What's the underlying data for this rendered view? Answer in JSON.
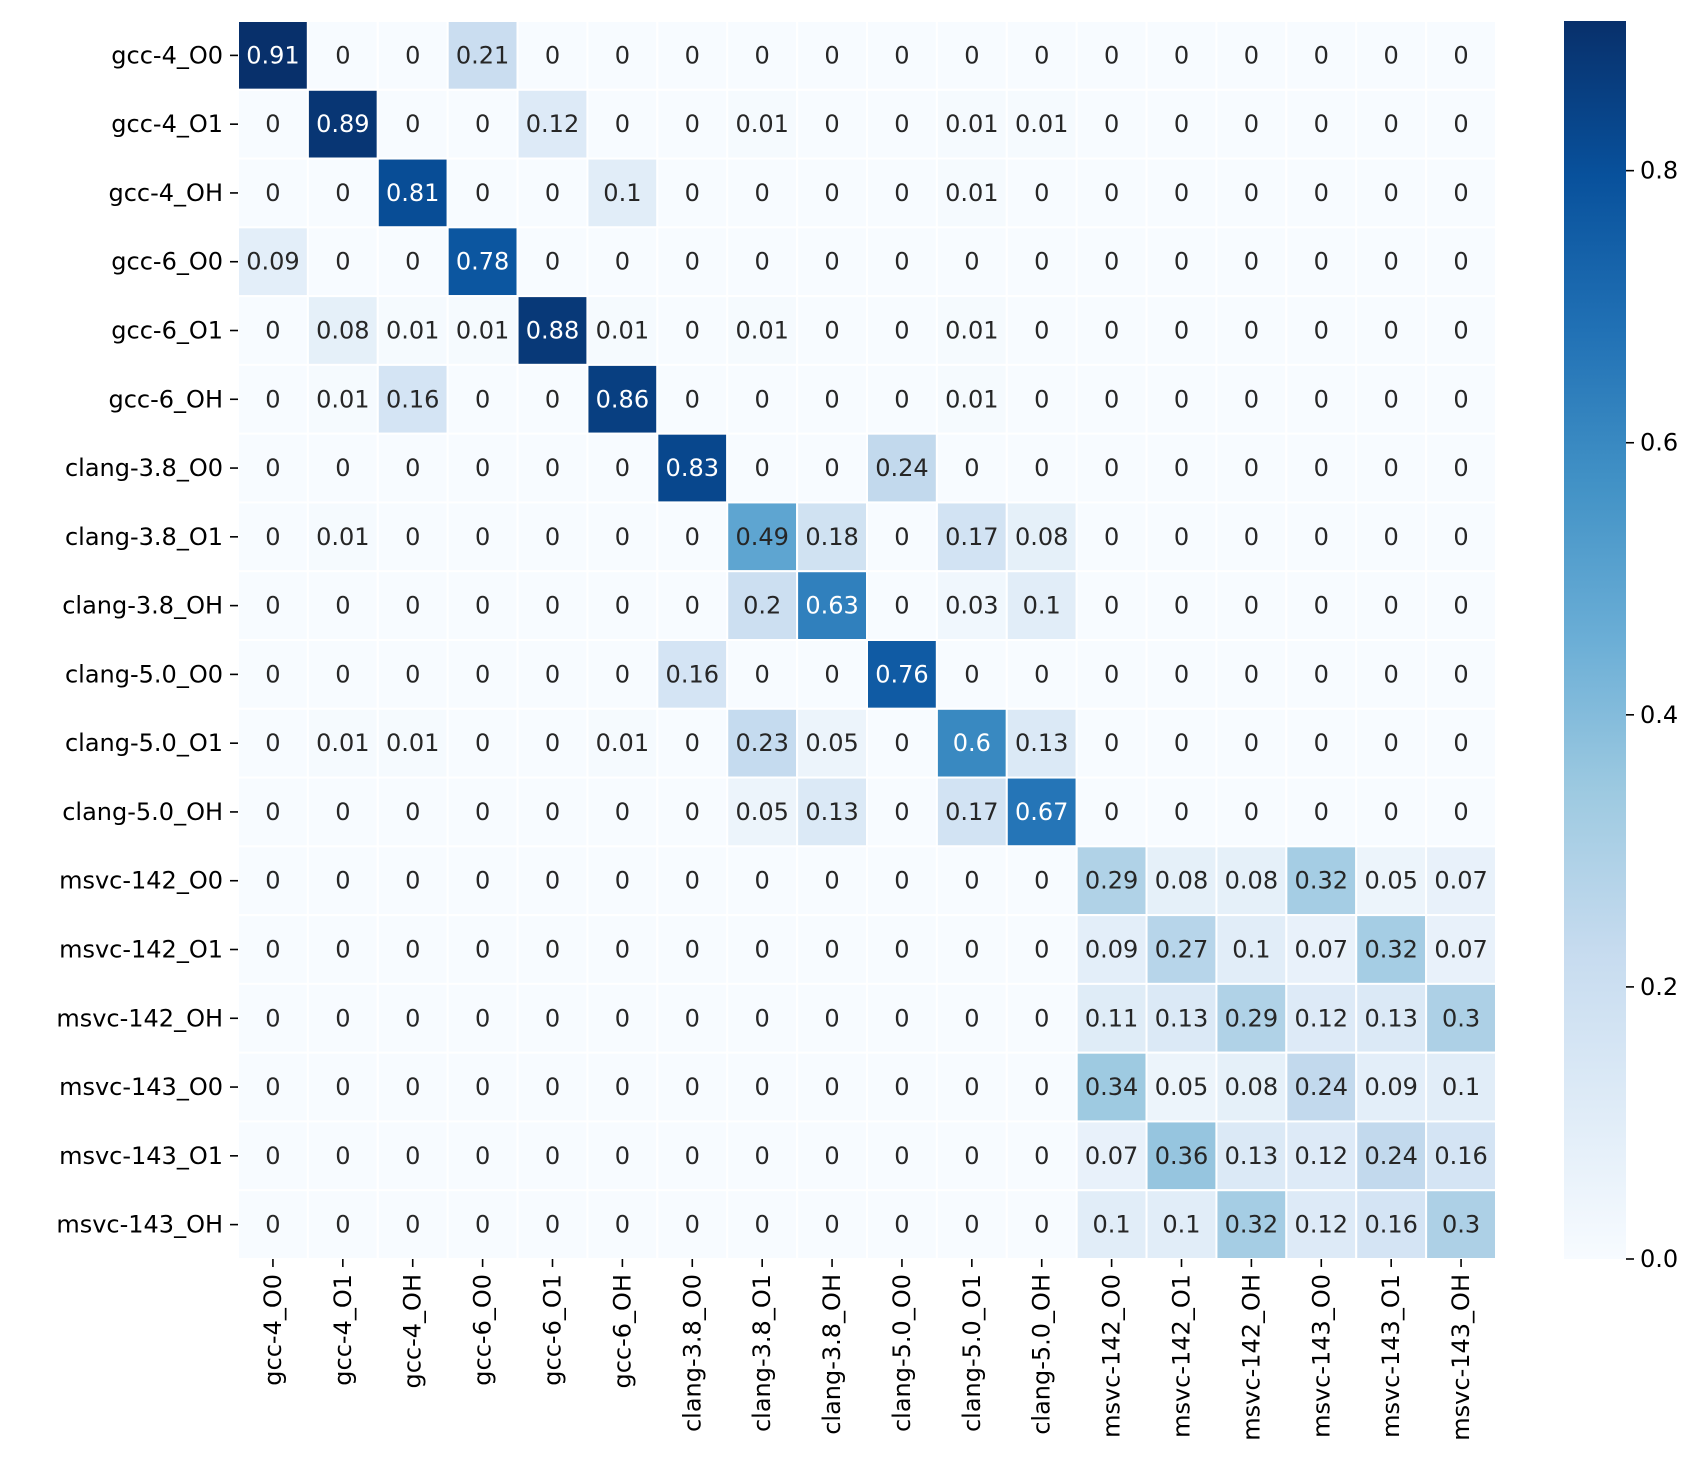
{
  "chart_data": {
    "type": "heatmap",
    "title": "",
    "xlabel": "",
    "ylabel": "",
    "rows": [
      "gcc-4_O0",
      "gcc-4_O1",
      "gcc-4_OH",
      "gcc-6_O0",
      "gcc-6_O1",
      "gcc-6_OH",
      "clang-3.8_O0",
      "clang-3.8_O1",
      "clang-3.8_OH",
      "clang-5.0_O0",
      "clang-5.0_O1",
      "clang-5.0_OH",
      "msvc-142_O0",
      "msvc-142_O1",
      "msvc-142_OH",
      "msvc-143_O0",
      "msvc-143_O1",
      "msvc-143_OH"
    ],
    "columns": [
      "gcc-4_O0",
      "gcc-4_O1",
      "gcc-4_OH",
      "gcc-6_O0",
      "gcc-6_O1",
      "gcc-6_OH",
      "clang-3.8_O0",
      "clang-3.8_O1",
      "clang-3.8_OH",
      "clang-5.0_O0",
      "clang-5.0_O1",
      "clang-5.0_OH",
      "msvc-142_O0",
      "msvc-142_O1",
      "msvc-142_OH",
      "msvc-143_O0",
      "msvc-143_O1",
      "msvc-143_OH"
    ],
    "values": [
      [
        0.91,
        0,
        0,
        0.21,
        0,
        0,
        0,
        0,
        0,
        0,
        0,
        0,
        0,
        0,
        0,
        0,
        0,
        0
      ],
      [
        0,
        0.89,
        0,
        0,
        0.12,
        0,
        0,
        0.01,
        0,
        0,
        0.01,
        0.01,
        0,
        0,
        0,
        0,
        0,
        0
      ],
      [
        0,
        0,
        0.81,
        0,
        0,
        0.1,
        0,
        0,
        0,
        0,
        0.01,
        0,
        0,
        0,
        0,
        0,
        0,
        0
      ],
      [
        0.09,
        0,
        0,
        0.78,
        0,
        0,
        0,
        0,
        0,
        0,
        0,
        0,
        0,
        0,
        0,
        0,
        0,
        0
      ],
      [
        0,
        0.08,
        0.01,
        0.01,
        0.88,
        0.01,
        0,
        0.01,
        0,
        0,
        0.01,
        0,
        0,
        0,
        0,
        0,
        0,
        0
      ],
      [
        0,
        0.01,
        0.16,
        0,
        0,
        0.86,
        0,
        0,
        0,
        0,
        0.01,
        0,
        0,
        0,
        0,
        0,
        0,
        0
      ],
      [
        0,
        0,
        0,
        0,
        0,
        0,
        0.83,
        0,
        0,
        0.24,
        0,
        0,
        0,
        0,
        0,
        0,
        0,
        0
      ],
      [
        0,
        0.01,
        0,
        0,
        0,
        0,
        0,
        0.49,
        0.18,
        0,
        0.17,
        0.08,
        0,
        0,
        0,
        0,
        0,
        0
      ],
      [
        0,
        0,
        0,
        0,
        0,
        0,
        0,
        0.2,
        0.63,
        0,
        0.03,
        0.1,
        0,
        0,
        0,
        0,
        0,
        0
      ],
      [
        0,
        0,
        0,
        0,
        0,
        0,
        0.16,
        0,
        0,
        0.76,
        0,
        0,
        0,
        0,
        0,
        0,
        0,
        0
      ],
      [
        0,
        0.01,
        0.01,
        0,
        0,
        0.01,
        0,
        0.23,
        0.05,
        0,
        0.6,
        0.13,
        0,
        0,
        0,
        0,
        0,
        0
      ],
      [
        0,
        0,
        0,
        0,
        0,
        0,
        0,
        0.05,
        0.13,
        0,
        0.17,
        0.67,
        0,
        0,
        0,
        0,
        0,
        0
      ],
      [
        0,
        0,
        0,
        0,
        0,
        0,
        0,
        0,
        0,
        0,
        0,
        0,
        0.29,
        0.08,
        0.08,
        0.32,
        0.05,
        0.07
      ],
      [
        0,
        0,
        0,
        0,
        0,
        0,
        0,
        0,
        0,
        0,
        0,
        0,
        0.09,
        0.27,
        0.1,
        0.07,
        0.32,
        0.07
      ],
      [
        0,
        0,
        0,
        0,
        0,
        0,
        0,
        0,
        0,
        0,
        0,
        0,
        0.11,
        0.13,
        0.29,
        0.12,
        0.13,
        0.3
      ],
      [
        0,
        0,
        0,
        0,
        0,
        0,
        0,
        0,
        0,
        0,
        0,
        0,
        0.34,
        0.05,
        0.08,
        0.24,
        0.09,
        0.1
      ],
      [
        0,
        0,
        0,
        0,
        0,
        0,
        0,
        0,
        0,
        0,
        0,
        0,
        0.07,
        0.36,
        0.13,
        0.12,
        0.24,
        0.16
      ],
      [
        0,
        0,
        0,
        0,
        0,
        0,
        0,
        0,
        0,
        0,
        0,
        0,
        0.1,
        0.1,
        0.32,
        0.12,
        0.16,
        0.3
      ]
    ],
    "colorscale": "Blues",
    "colorbar": {
      "vmin": 0,
      "vmax": 0.91,
      "ticks": [
        0.0,
        0.2,
        0.4,
        0.6,
        0.8
      ],
      "tick_labels": [
        "0.0",
        "0.2",
        "0.4",
        "0.6",
        "0.8"
      ]
    },
    "annotations": "cell values shown in each cell",
    "grid": false,
    "legend": "colorbar at right"
  }
}
